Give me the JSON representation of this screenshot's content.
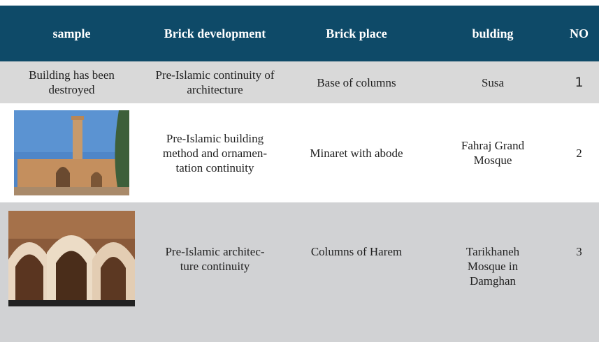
{
  "table": {
    "header": [
      "sample",
      "Brick development",
      "Brick place",
      "bulding",
      "NO"
    ],
    "rows": [
      {
        "sample": "Building has been destroyed",
        "development": "Pre-Islamic continuity of architecture",
        "place": "Base of columns",
        "building": "Susa",
        "no": 1
      },
      {
        "development": "Pre-Islamic building method and ornamen-\ntation continuity",
        "place": "Minaret with abode",
        "building": "Fahraj Grand\nMosque",
        "no": 2
      },
      {
        "development": "Pre-Islamic architec-\nture continuity",
        "place": "Columns of Harem",
        "building": "Tarikhaneh\nMosque in\nDamghan",
        "no": 3
      }
    ]
  }
}
